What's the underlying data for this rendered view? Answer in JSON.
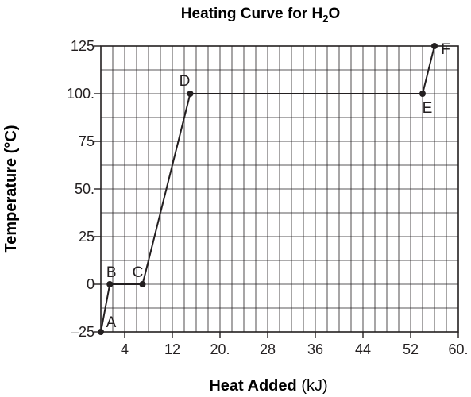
{
  "chart_data": {
    "type": "line",
    "title": "Heating Curve for H",
    "title_subscript": "2",
    "title_suffix": "O",
    "xlabel": "Heat Added",
    "xlabel_unit": "(kJ)",
    "ylabel": "Temperature (°C)",
    "xlim": [
      0,
      60
    ],
    "ylim": [
      -25,
      125
    ],
    "x_ticks": [
      {
        "value": 4,
        "label": "4"
      },
      {
        "value": 12,
        "label": "12"
      },
      {
        "value": 20,
        "label": "20."
      },
      {
        "value": 28,
        "label": "28"
      },
      {
        "value": 36,
        "label": "36"
      },
      {
        "value": 44,
        "label": "44"
      },
      {
        "value": 52,
        "label": "52"
      },
      {
        "value": 60,
        "label": "60."
      }
    ],
    "y_ticks": [
      {
        "value": -25,
        "label": "–25"
      },
      {
        "value": 0,
        "label": "0"
      },
      {
        "value": 25,
        "label": "25"
      },
      {
        "value": 50,
        "label": "50."
      },
      {
        "value": 75,
        "label": "75"
      },
      {
        "value": 100,
        "label": "100."
      },
      {
        "value": 125,
        "label": "125"
      }
    ],
    "grid": true,
    "grid_x_step": 2,
    "grid_y_step": 12.5,
    "series": [
      {
        "points": [
          {
            "label": "A",
            "x": 0,
            "y": -25
          },
          {
            "label": "B",
            "x": 1.5,
            "y": 0
          },
          {
            "label": "C",
            "x": 7,
            "y": 0
          },
          {
            "label": "D",
            "x": 15,
            "y": 100
          },
          {
            "label": "E",
            "x": 54,
            "y": 100
          },
          {
            "label": "F",
            "x": 56,
            "y": 125
          }
        ]
      }
    ],
    "line_color": "#231f20",
    "grid_color": "#231f20",
    "background": "#ffffff"
  }
}
